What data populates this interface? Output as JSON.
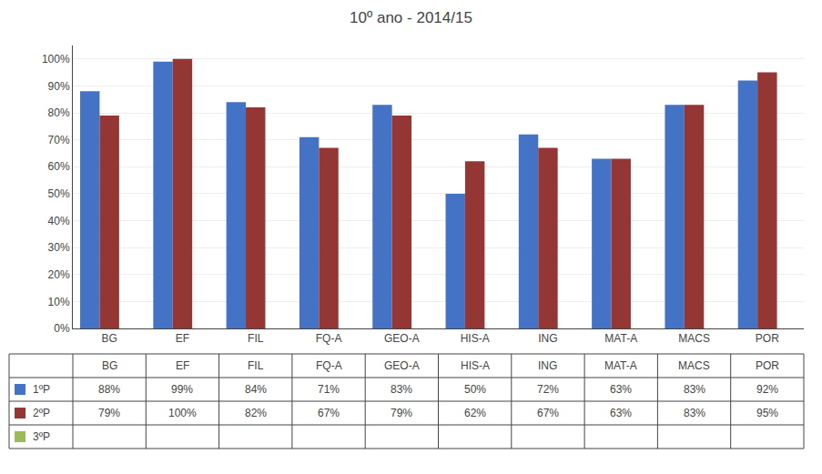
{
  "chart_data": {
    "type": "bar",
    "title": "10º ano - 2014/15",
    "categories": [
      "BG",
      "EF",
      "FIL",
      "FQ-A",
      "GEO-A",
      "HIS-A",
      "ING",
      "MAT-A",
      "MACS",
      "POR"
    ],
    "series": [
      {
        "name": "1ºP",
        "color": "#4472C4",
        "values": [
          0.88,
          0.99,
          0.84,
          0.71,
          0.83,
          0.5,
          0.72,
          0.63,
          0.83,
          0.92
        ],
        "value_labels": [
          "88%",
          "99%",
          "84%",
          "71%",
          "83%",
          "50%",
          "72%",
          "63%",
          "83%",
          "92%"
        ]
      },
      {
        "name": "2ºP",
        "color": "#943634",
        "values": [
          0.79,
          1.0,
          0.82,
          0.67,
          0.79,
          0.62,
          0.67,
          0.63,
          0.83,
          0.95
        ],
        "value_labels": [
          "79%",
          "100%",
          "82%",
          "67%",
          "79%",
          "62%",
          "67%",
          "63%",
          "83%",
          "95%"
        ]
      },
      {
        "name": "3ºP",
        "color": "#9BBB59",
        "values": [
          null,
          null,
          null,
          null,
          null,
          null,
          null,
          null,
          null,
          null
        ]
      }
    ],
    "ylim": [
      0,
      1.05
    ],
    "yticks": [
      {
        "value": 0,
        "label": "0%"
      },
      {
        "value": 0.1,
        "label": "10%"
      },
      {
        "value": 0.2,
        "label": "20%"
      },
      {
        "value": 0.3,
        "label": "30%"
      },
      {
        "value": 0.4,
        "label": "40%"
      },
      {
        "value": 0.5,
        "label": "50%"
      },
      {
        "value": 0.6,
        "label": "60%"
      },
      {
        "value": 0.7,
        "label": "70%"
      },
      {
        "value": 0.8,
        "label": "80%"
      },
      {
        "value": 0.9,
        "label": "90%"
      },
      {
        "value": 1,
        "label": "100%"
      }
    ],
    "grid": true
  }
}
